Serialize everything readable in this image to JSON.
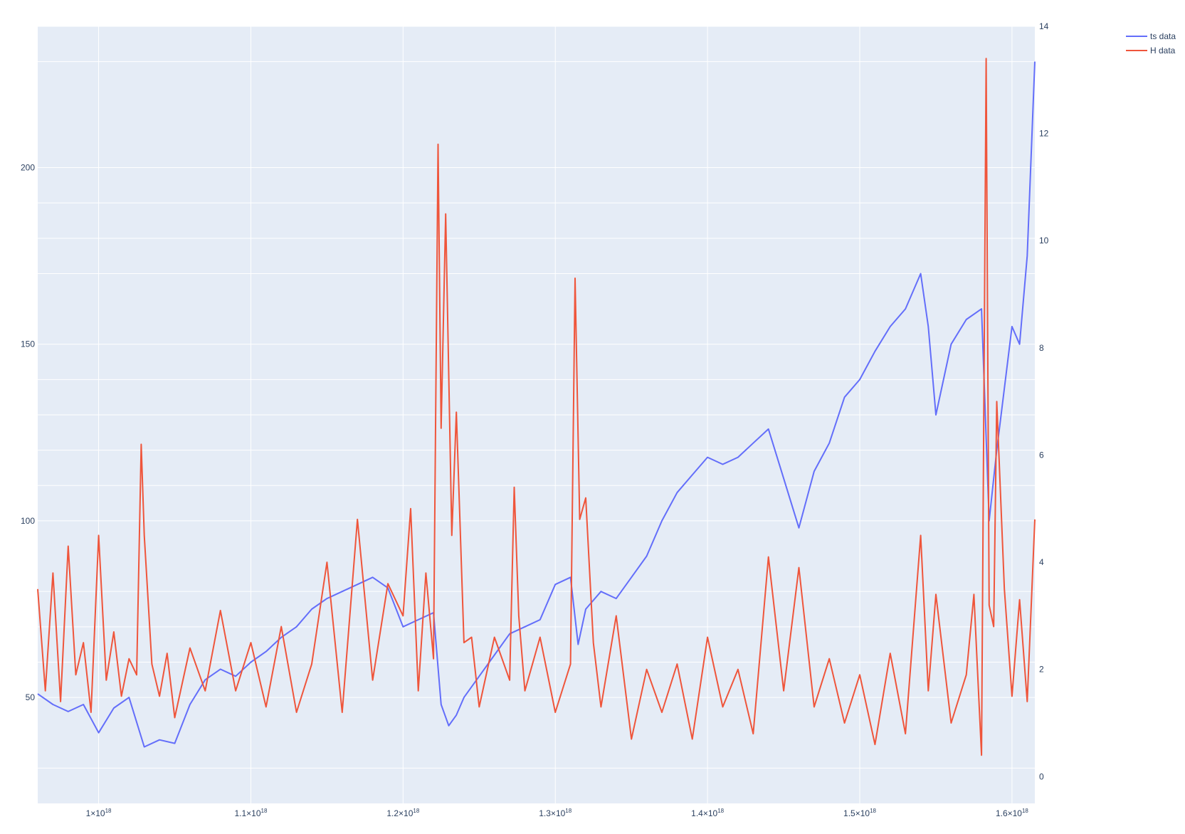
{
  "chart_data": {
    "type": "line",
    "x_range": [
      9.6e+17,
      1.615e+18
    ],
    "y_left_range": [
      20,
      240
    ],
    "y_right_range": [
      -0.5,
      14
    ],
    "grid": true,
    "legend_position": "top-right",
    "x_ticks": [
      {
        "value": 1e+18,
        "base": "1×10",
        "exp": "18"
      },
      {
        "value": 1.1e+18,
        "base": "1.1×10",
        "exp": "18"
      },
      {
        "value": 1.2e+18,
        "base": "1.2×10",
        "exp": "18"
      },
      {
        "value": 1.3e+18,
        "base": "1.3×10",
        "exp": "18"
      },
      {
        "value": 1.4e+18,
        "base": "1.4×10",
        "exp": "18"
      },
      {
        "value": 1.5e+18,
        "base": "1.5×10",
        "exp": "18"
      },
      {
        "value": 1.6e+18,
        "base": "1.6×10",
        "exp": "18"
      }
    ],
    "y_left_ticks": [
      50,
      100,
      150,
      200
    ],
    "y_right_ticks": [
      0,
      2,
      4,
      6,
      8,
      10,
      12,
      14
    ],
    "y_left_extra_grid": [
      30,
      60,
      70,
      80,
      110,
      120,
      130,
      140,
      170,
      180,
      190,
      230,
      240
    ],
    "series": [
      {
        "name": "ts data",
        "axis": "left",
        "color": "#636efa",
        "x": [
          9.6e+17,
          9.7e+17,
          9.8e+17,
          9.9e+17,
          1e+18,
          1.01e+18,
          1.02e+18,
          1.03e+18,
          1.04e+18,
          1.05e+18,
          1.06e+18,
          1.07e+18,
          1.08e+18,
          1.09e+18,
          1.1e+18,
          1.11e+18,
          1.12e+18,
          1.13e+18,
          1.14e+18,
          1.15e+18,
          1.16e+18,
          1.17e+18,
          1.18e+18,
          1.19e+18,
          1.2e+18,
          1.21e+18,
          1.22e+18,
          1.225e+18,
          1.23e+18,
          1.235e+18,
          1.24e+18,
          1.25e+18,
          1.26e+18,
          1.27e+18,
          1.28e+18,
          1.29e+18,
          1.3e+18,
          1.31e+18,
          1.315e+18,
          1.32e+18,
          1.33e+18,
          1.34e+18,
          1.35e+18,
          1.36e+18,
          1.37e+18,
          1.38e+18,
          1.39e+18,
          1.4e+18,
          1.41e+18,
          1.42e+18,
          1.43e+18,
          1.44e+18,
          1.45e+18,
          1.46e+18,
          1.47e+18,
          1.48e+18,
          1.49e+18,
          1.5e+18,
          1.51e+18,
          1.52e+18,
          1.53e+18,
          1.54e+18,
          1.545e+18,
          1.55e+18,
          1.56e+18,
          1.57e+18,
          1.58e+18,
          1.585e+18,
          1.59e+18,
          1.6e+18,
          1.605e+18,
          1.61e+18,
          1.615e+18
        ],
        "y": [
          51,
          48,
          46,
          48,
          40,
          47,
          50,
          36,
          38,
          37,
          48,
          55,
          58,
          56,
          60,
          63,
          67,
          70,
          75,
          78,
          80,
          82,
          84,
          81,
          70,
          72,
          74,
          48,
          42,
          45,
          50,
          56,
          62,
          68,
          70,
          72,
          82,
          84,
          65,
          75,
          80,
          78,
          84,
          90,
          100,
          108,
          113,
          118,
          116,
          118,
          122,
          126,
          112,
          98,
          114,
          122,
          135,
          140,
          148,
          155,
          160,
          170,
          155,
          130,
          150,
          157,
          160,
          100,
          120,
          155,
          150,
          175,
          230
        ]
      },
      {
        "name": "H data",
        "axis": "right",
        "color": "#ef553b",
        "x": [
          9.6e+17,
          9.65e+17,
          9.7e+17,
          9.75e+17,
          9.8e+17,
          9.85e+17,
          9.9e+17,
          9.95e+17,
          1e+18,
          1.005e+18,
          1.01e+18,
          1.015e+18,
          1.02e+18,
          1.025e+18,
          1.028e+18,
          1.03e+18,
          1.035e+18,
          1.04e+18,
          1.045e+18,
          1.05e+18,
          1.06e+18,
          1.07e+18,
          1.08e+18,
          1.09e+18,
          1.1e+18,
          1.11e+18,
          1.12e+18,
          1.13e+18,
          1.14e+18,
          1.15e+18,
          1.16e+18,
          1.17e+18,
          1.18e+18,
          1.19e+18,
          1.2e+18,
          1.205e+18,
          1.21e+18,
          1.215e+18,
          1.22e+18,
          1.223e+18,
          1.225e+18,
          1.228e+18,
          1.232e+18,
          1.235e+18,
          1.24e+18,
          1.245e+18,
          1.25e+18,
          1.26e+18,
          1.27e+18,
          1.273e+18,
          1.276e+18,
          1.28e+18,
          1.29e+18,
          1.3e+18,
          1.31e+18,
          1.313e+18,
          1.316e+18,
          1.32e+18,
          1.325e+18,
          1.33e+18,
          1.34e+18,
          1.35e+18,
          1.36e+18,
          1.37e+18,
          1.38e+18,
          1.39e+18,
          1.4e+18,
          1.41e+18,
          1.42e+18,
          1.43e+18,
          1.44e+18,
          1.45e+18,
          1.46e+18,
          1.47e+18,
          1.48e+18,
          1.49e+18,
          1.5e+18,
          1.51e+18,
          1.52e+18,
          1.53e+18,
          1.54e+18,
          1.545e+18,
          1.55e+18,
          1.56e+18,
          1.57e+18,
          1.575e+18,
          1.58e+18,
          1.583e+18,
          1.585e+18,
          1.588e+18,
          1.59e+18,
          1.595e+18,
          1.6e+18,
          1.605e+18,
          1.61e+18,
          1.615e+18
        ],
        "y": [
          3.5,
          1.6,
          3.8,
          1.4,
          4.3,
          1.9,
          2.5,
          1.2,
          4.5,
          1.8,
          2.7,
          1.5,
          2.2,
          1.9,
          6.2,
          4.5,
          2.1,
          1.5,
          2.3,
          1.1,
          2.4,
          1.6,
          3.1,
          1.6,
          2.5,
          1.3,
          2.8,
          1.2,
          2.1,
          4.0,
          1.2,
          4.8,
          1.8,
          3.6,
          3.0,
          5.0,
          1.6,
          3.8,
          2.2,
          11.8,
          6.5,
          10.5,
          4.5,
          6.8,
          2.5,
          2.6,
          1.3,
          2.6,
          1.8,
          5.4,
          3.0,
          1.6,
          2.6,
          1.2,
          2.1,
          9.3,
          4.8,
          5.2,
          2.5,
          1.3,
          3.0,
          0.7,
          2.0,
          1.2,
          2.1,
          0.7,
          2.6,
          1.3,
          2.0,
          0.8,
          4.1,
          1.6,
          3.9,
          1.3,
          2.2,
          1.0,
          1.9,
          0.6,
          2.3,
          0.8,
          4.5,
          1.6,
          3.4,
          1.0,
          1.9,
          3.4,
          0.4,
          13.4,
          3.2,
          2.8,
          7.0,
          3.5,
          1.5,
          3.3,
          1.4,
          4.8
        ]
      }
    ]
  }
}
